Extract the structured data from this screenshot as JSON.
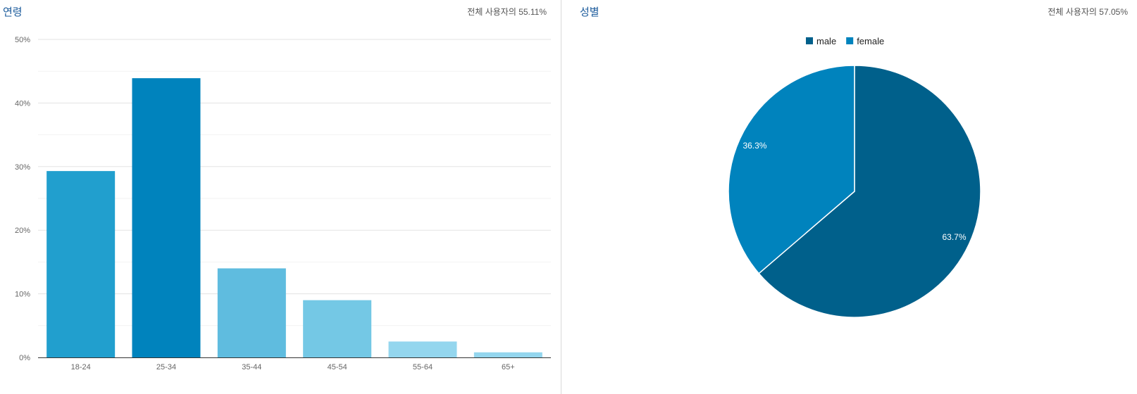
{
  "age_panel": {
    "title": "연령",
    "summary": "전체 사용자의 55.11%"
  },
  "gender_panel": {
    "title": "성별",
    "summary": "전체 사용자의 57.05%"
  },
  "chart_data": [
    {
      "type": "bar",
      "categories": [
        "18-24",
        "25-34",
        "35-44",
        "45-54",
        "55-64",
        "65+"
      ],
      "values": [
        29.3,
        43.9,
        14.0,
        9.0,
        2.5,
        0.8
      ],
      "colors": [
        "#219fce",
        "#0083bd",
        "#5fbcdf",
        "#74c8e5",
        "#94d6ee",
        "#94d6ee"
      ],
      "yticks": [
        "0%",
        "10%",
        "20%",
        "30%",
        "40%",
        "50%"
      ],
      "ylim": [
        0,
        50
      ],
      "grid": true,
      "xlabel": "",
      "ylabel": ""
    },
    {
      "type": "pie",
      "series": [
        {
          "name": "male",
          "value": 63.7,
          "label": "63.7%",
          "color": "#00608b"
        },
        {
          "name": "female",
          "value": 36.3,
          "label": "36.3%",
          "color": "#0083bd"
        }
      ],
      "legend": "top-center"
    }
  ]
}
